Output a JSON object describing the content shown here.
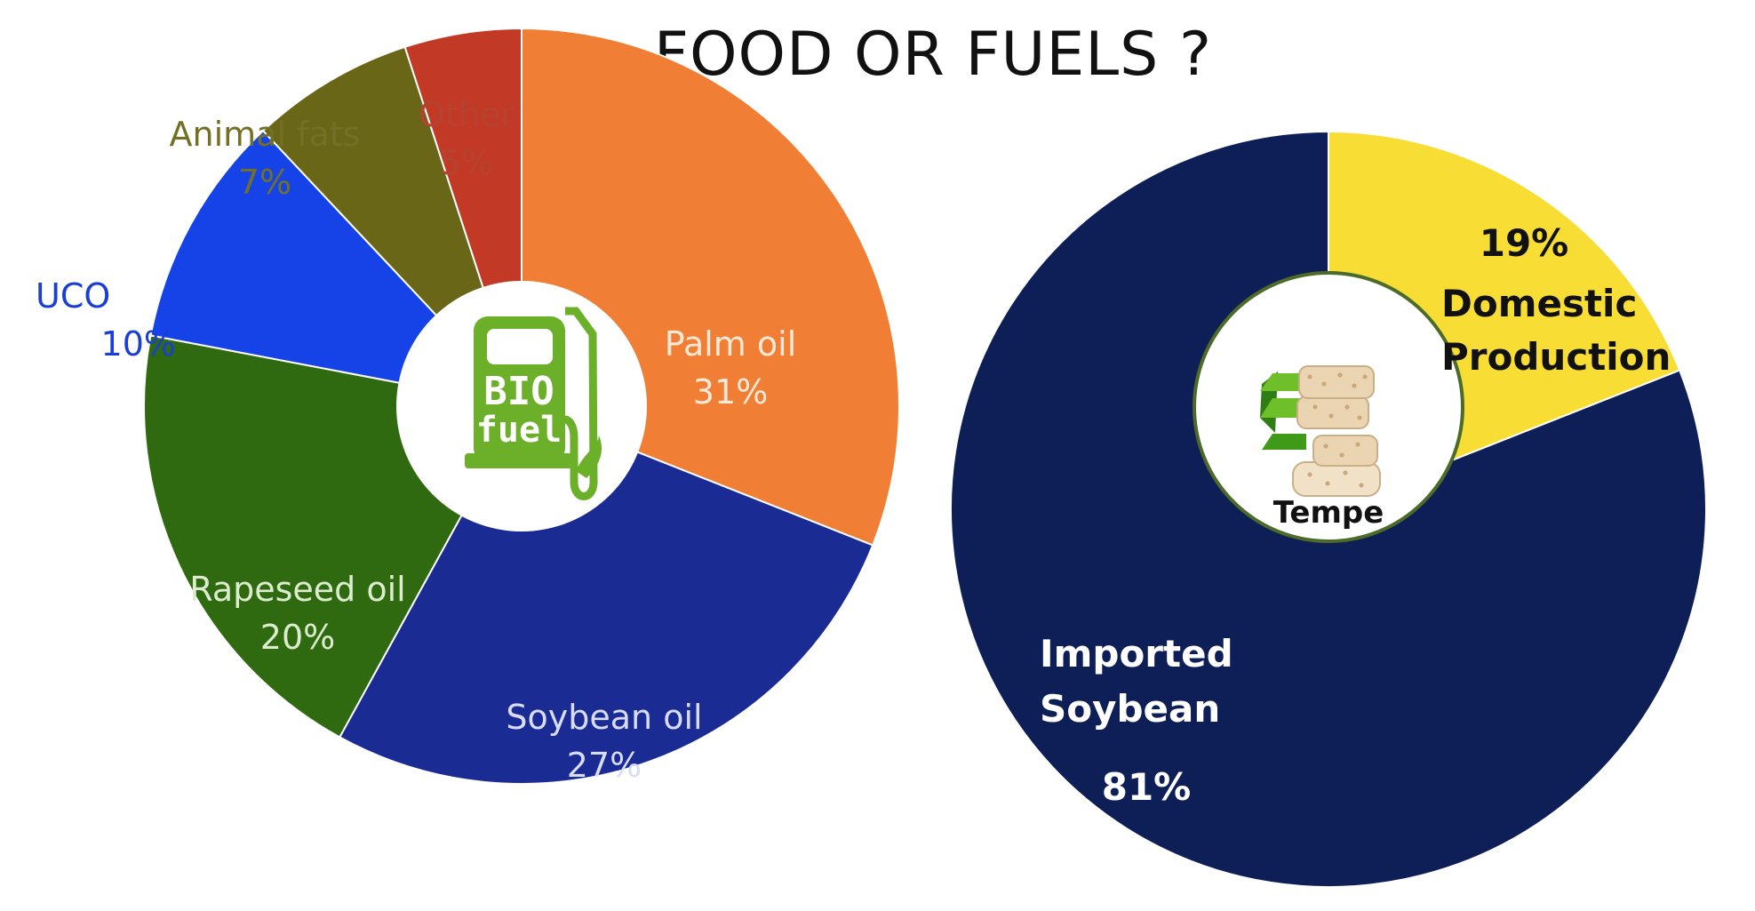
{
  "title": "FOOD OR FUELS ?",
  "chart_data": [
    {
      "type": "pie",
      "title": "",
      "center_icon": "bio-fuel-pump-icon",
      "center_text": [
        "BIO",
        "fuel"
      ],
      "slices": [
        {
          "label": "Palm oil",
          "value": 31,
          "value_label": "31%",
          "color": "#F07F35",
          "text_color": "#FCE8D6"
        },
        {
          "label": "Soybean oil",
          "value": 27,
          "value_label": "27%",
          "color": "#1B2B94",
          "text_color": "#D8DCF5"
        },
        {
          "label": "Rapeseed oil",
          "value": 20,
          "value_label": "20%",
          "color": "#2F6A10",
          "text_color": "#DDEBCF"
        },
        {
          "label": "UCO",
          "value": 10,
          "value_label": "10%",
          "color": "#1543E8",
          "text_color": "#1A3ED6"
        },
        {
          "label": "Animal fats",
          "value": 7,
          "value_label": "7%",
          "color": "#6A6618",
          "text_color": "#737025"
        },
        {
          "label": "Other",
          "value": 5,
          "value_label": "5%",
          "color": "#C23A26",
          "text_color": "#B5432F"
        }
      ]
    },
    {
      "type": "pie",
      "title": "",
      "center_icon": "tempe-icon",
      "center_text": [
        "Tempe"
      ],
      "slices": [
        {
          "label": "Domestic Production",
          "value": 19,
          "value_label": "19%",
          "color": "#F8DE34",
          "text_color": "#111111"
        },
        {
          "label": "Imported Soybean",
          "value": 81,
          "value_label": "81%",
          "color": "#0E1E56",
          "text_color": "#FFFFFF"
        }
      ]
    }
  ]
}
